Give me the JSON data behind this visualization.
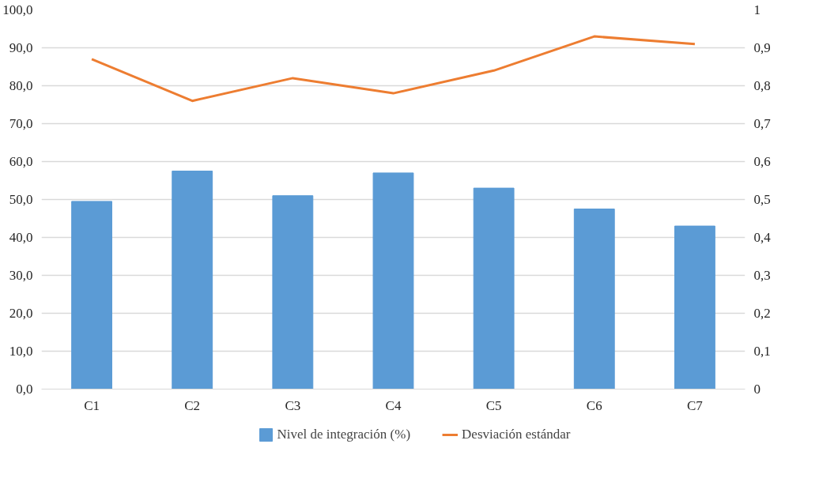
{
  "chart_data": {
    "type": "bar",
    "categories": [
      "C1",
      "C2",
      "C3",
      "C4",
      "C5",
      "C6",
      "C7"
    ],
    "series": [
      {
        "name": "Nivel de integración (%)",
        "color": "#5b9bd5",
        "values": [
          49.5,
          57.5,
          51,
          57,
          53,
          47.5,
          43
        ]
      },
      {
        "name": "Desviación estándar",
        "type": "line",
        "axis": "y2",
        "color": "#ed7d31",
        "values": [
          0.87,
          0.76,
          0.82,
          0.78,
          0.84,
          0.93,
          0.91
        ]
      }
    ],
    "ylim": [
      0,
      100
    ],
    "yticks": [
      {
        "value": 0,
        "label": "0,0"
      },
      {
        "value": 10,
        "label": "10,0"
      },
      {
        "value": 20,
        "label": "20,0"
      },
      {
        "value": 30,
        "label": "30,0"
      },
      {
        "value": 40,
        "label": "40,0"
      },
      {
        "value": 50,
        "label": "50,0"
      },
      {
        "value": 60,
        "label": "60,0"
      },
      {
        "value": 70,
        "label": "70,0"
      },
      {
        "value": 80,
        "label": "80,0"
      },
      {
        "value": 90,
        "label": "90,0"
      },
      {
        "value": 100,
        "label": "100,0"
      }
    ],
    "y2lim": [
      0,
      1
    ],
    "y2ticks": [
      0,
      {
        "value": 0.1,
        "label": "0,1"
      },
      {
        "value": 0.2,
        "label": "0,2"
      },
      {
        "value": 0.3,
        "label": "0,3"
      },
      {
        "value": 0.4,
        "label": "0,4"
      },
      {
        "value": 0.5,
        "label": "0,5"
      },
      {
        "value": 0.6,
        "label": "0,6"
      },
      {
        "value": 0.7,
        "label": "0,7"
      },
      {
        "value": 0.8,
        "label": "0,8"
      },
      {
        "value": 0.9,
        "label": "0,9"
      },
      1
    ],
    "grid": "y",
    "legend": "bottom"
  }
}
